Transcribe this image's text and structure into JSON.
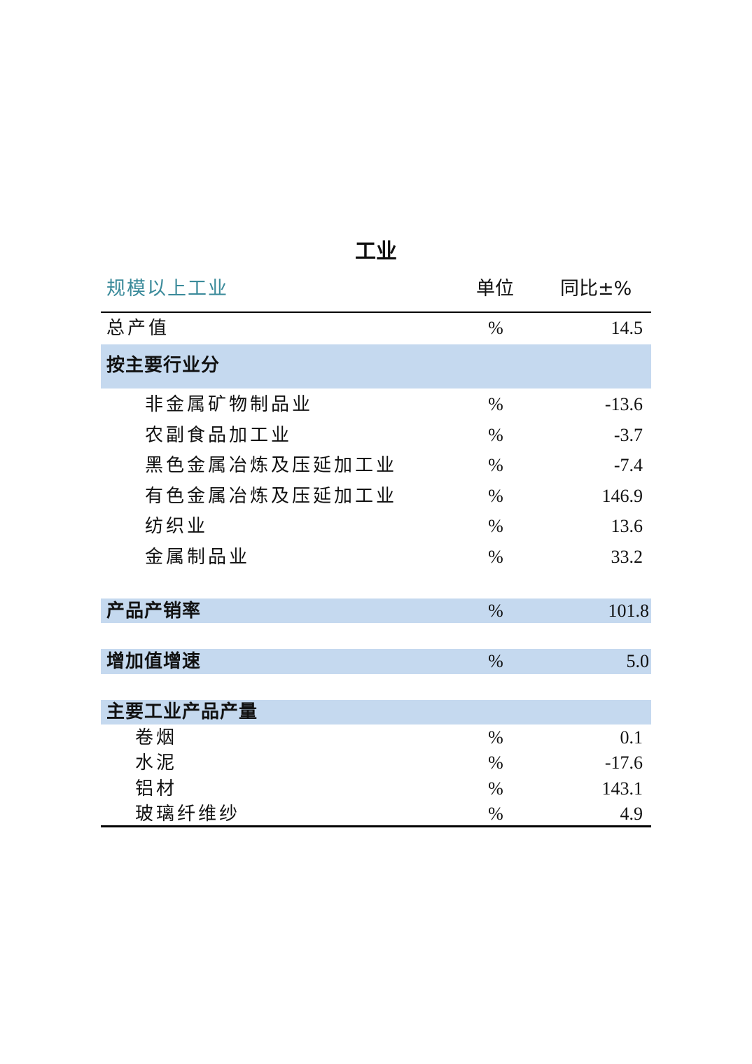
{
  "title": "工业",
  "header": {
    "label": "规模以上工业",
    "unit": "单位",
    "yoy": "同比±%"
  },
  "total": {
    "label": "总产值",
    "unit": "%",
    "value": "14.5"
  },
  "by_industry": {
    "label": "按主要行业分",
    "items": [
      {
        "label": "非金属矿物制品业",
        "unit": "%",
        "value": "-13.6"
      },
      {
        "label": "农副食品加工业",
        "unit": "%",
        "value": "-3.7"
      },
      {
        "label": "黑色金属冶炼及压延加工业",
        "unit": "%",
        "value": "-7.4"
      },
      {
        "label": "有色金属冶炼及压延加工业",
        "unit": "%",
        "value": "146.9"
      },
      {
        "label": "纺织业",
        "unit": "%",
        "value": "13.6"
      },
      {
        "label": "金属制品业",
        "unit": "%",
        "value": "33.2"
      }
    ]
  },
  "sales_rate": {
    "label": "产品产销率",
    "unit": "%",
    "value": "101.8"
  },
  "value_added": {
    "label": "增加值增速",
    "unit": "%",
    "value": "5.0"
  },
  "products": {
    "label": "主要工业产品产量",
    "items": [
      {
        "label": "卷烟",
        "unit": "%",
        "value": "0.1"
      },
      {
        "label": "水泥",
        "unit": "%",
        "value": "-17.6"
      },
      {
        "label": "铝材",
        "unit": "%",
        "value": "143.1"
      },
      {
        "label": "玻璃纤维纱",
        "unit": "%",
        "value": "4.9"
      }
    ]
  },
  "colors": {
    "header_label": "#3a8a9a",
    "band": "#c5d9ef"
  }
}
